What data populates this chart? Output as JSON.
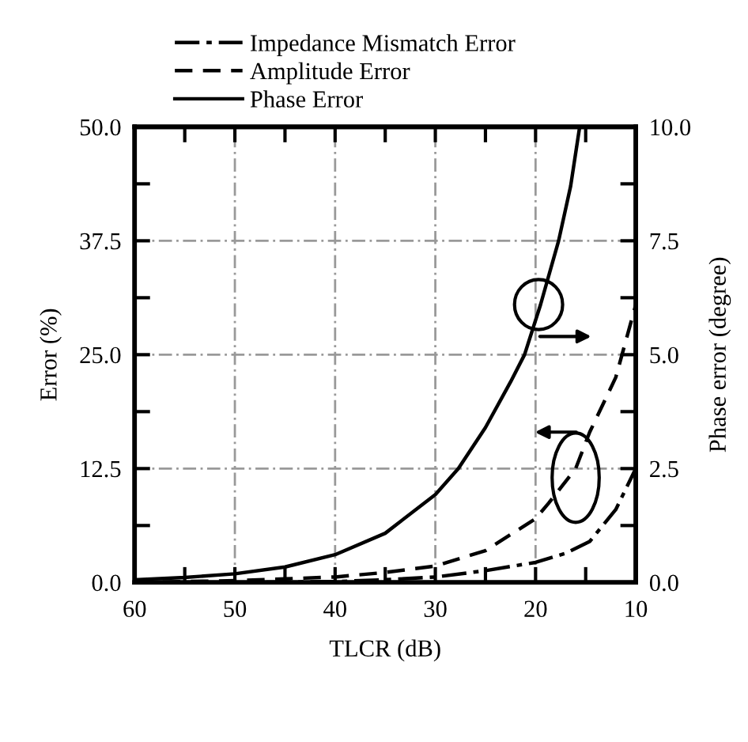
{
  "chart_data": {
    "type": "line",
    "xlabel": "TLCR (dB)",
    "ylabel": "Error (%)",
    "y2label": "Phase error (degree)",
    "xlim": [
      60,
      10
    ],
    "xticks": [
      60,
      {
        "value": 55,
        "label": null
      },
      50,
      {
        "value": 45,
        "label": null
      },
      40,
      {
        "value": 35,
        "label": null
      },
      30,
      {
        "value": 25,
        "label": null
      },
      20,
      {
        "value": 15,
        "label": null
      },
      10
    ],
    "ylim": [
      0,
      50
    ],
    "yticks": [
      {
        "value": 0,
        "label": "0.0"
      },
      {
        "value": 6.25,
        "label": null
      },
      {
        "value": 12.5,
        "label": "12.5"
      },
      {
        "value": 18.75,
        "label": null
      },
      {
        "value": 25,
        "label": "25.0"
      },
      {
        "value": 31.25,
        "label": null
      },
      {
        "value": 37.5,
        "label": "37.5"
      },
      {
        "value": 43.75,
        "label": null
      },
      {
        "value": 50,
        "label": "50.0"
      }
    ],
    "y2lim": [
      0,
      10
    ],
    "y2ticks": [
      {
        "value": 0,
        "label": "0.0"
      },
      {
        "value": 1.25,
        "label": null
      },
      {
        "value": 2.5,
        "label": "2.5"
      },
      {
        "value": 3.75,
        "label": null
      },
      {
        "value": 5,
        "label": "5.0"
      },
      {
        "value": 6.25,
        "label": null
      },
      {
        "value": 7.5,
        "label": "7.5"
      },
      {
        "value": 8.75,
        "label": null
      },
      {
        "value": 10,
        "label": "10.0"
      }
    ],
    "grid": true,
    "legend": "top",
    "series": [
      {
        "name": "Impedance Mismatch Error",
        "color": "#000000",
        "line_style": "dashdot",
        "x": [
          60,
          50,
          40,
          35,
          30,
          25,
          20,
          17,
          14.6,
          12,
          10
        ],
        "values": [
          0.0,
          0.0,
          0.1,
          0.3,
          0.6,
          1.3,
          2.2,
          3.2,
          4.5,
          8,
          12.5
        ]
      },
      {
        "name": "Amplitude Error",
        "color": "#000000",
        "line_style": "dashed",
        "x": [
          60,
          50,
          45,
          40,
          35,
          30,
          25,
          20,
          18.7,
          16,
          14.6,
          12,
          10
        ],
        "values": [
          0.0,
          0.2,
          0.4,
          0.6,
          1.1,
          1.8,
          3.5,
          7.0,
          8.7,
          12.5,
          16.5,
          22.5,
          30.5
        ]
      },
      {
        "name": "Phase Error",
        "color": "#000000",
        "line_style": "solid",
        "axis": "y2",
        "x": [
          60,
          55,
          50,
          45,
          40,
          35,
          30,
          27.7,
          25,
          22.5,
          21.1,
          19.5,
          17.7,
          16.5,
          15.6
        ],
        "values": [
          0.06,
          0.11,
          0.19,
          0.34,
          0.61,
          1.08,
          1.93,
          2.5,
          3.4,
          4.4,
          5.0,
          6.1,
          7.5,
          8.7,
          10.0
        ]
      }
    ]
  }
}
